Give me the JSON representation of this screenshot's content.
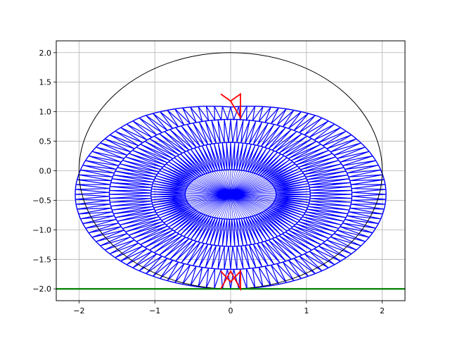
{
  "chart_data": {
    "type": "line",
    "title": "",
    "xlabel": "",
    "ylabel": "",
    "xlim": [
      -2.3,
      2.3
    ],
    "ylim": [
      -2.2,
      2.2
    ],
    "grid": true,
    "x_ticks": [
      -2,
      -1,
      0,
      1,
      2
    ],
    "x_tick_labels": [
      "−2",
      "−1",
      "0",
      "1",
      "2"
    ],
    "y_ticks": [
      -2.0,
      -1.5,
      -1.0,
      -0.5,
      0.0,
      0.5,
      1.0,
      1.5,
      2.0
    ],
    "y_tick_labels": [
      "−2.0",
      "−1.5",
      "−1.0",
      "−0.5",
      "0.0",
      "0.5",
      "1.0",
      "1.5",
      "2.0"
    ],
    "series": [
      {
        "role": "reference-circle",
        "color": "#000000",
        "center": [
          0,
          0
        ],
        "radius": 2.0
      },
      {
        "role": "ground-line",
        "color": "#008000",
        "y": -2.0
      },
      {
        "role": "blue-mesh",
        "color": "#0000ff",
        "center": [
          0,
          -0.4
        ],
        "ring_radii": [
          [
            2.05,
            1.6
          ],
          [
            1.6,
            1.27
          ],
          [
            1.05,
            0.88
          ],
          [
            0.6,
            0.42
          ]
        ],
        "spokes": 120,
        "top_cusp": [
          0.0,
          1.3
        ],
        "bottom_point": [
          0.0,
          -2.0
        ]
      },
      {
        "role": "red-marker-top",
        "color": "#ff0000",
        "points": [
          [
            -0.13,
            1.3
          ],
          [
            0.0,
            1.18
          ],
          [
            0.13,
            1.3
          ],
          [
            0.13,
            0.9
          ],
          [
            0.0,
            1.18
          ],
          [
            -0.13,
            1.3
          ]
        ]
      },
      {
        "role": "red-marker-bottom",
        "color": "#ff0000",
        "points": [
          [
            -0.13,
            -1.7
          ],
          [
            0.0,
            -1.88
          ],
          [
            0.13,
            -1.7
          ],
          [
            0.13,
            -2.0
          ],
          [
            0.0,
            -1.7
          ],
          [
            -0.13,
            -2.0
          ]
        ]
      }
    ]
  }
}
